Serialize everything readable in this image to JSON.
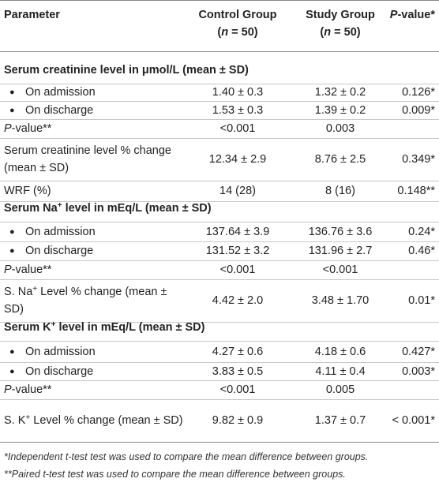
{
  "table": {
    "header": [
      [
        [
          "Parameter"
        ]
      ],
      [
        [
          "Control Group"
        ],
        [
          "(",
          {
            "text": "n",
            "style": "italic"
          },
          " = 50)"
        ]
      ],
      [
        [
          "Study Group"
        ],
        [
          "(",
          {
            "text": "n",
            "style": "italic"
          },
          " = 50)"
        ]
      ],
      [
        [
          {
            "text": "P",
            "style": "italic"
          },
          "-value*"
        ]
      ]
    ],
    "rows": [
      {
        "kind": "section",
        "cells": [
          [
            "Serum creatinine level in μmol/L (mean ± SD)"
          ]
        ]
      },
      {
        "kind": "bullet",
        "cells": [
          [
            "On admission"
          ],
          "1.40 ± 0.3",
          "1.32 ± 0.2",
          "0.126*"
        ]
      },
      {
        "kind": "bullet",
        "cells": [
          [
            "On discharge"
          ],
          "1.53 ± 0.3",
          "1.39 ± 0.2",
          "0.009*"
        ]
      },
      {
        "kind": "plain",
        "cells": [
          [
            {
              "text": "P",
              "style": "italic"
            },
            "-value**"
          ],
          "<0.001",
          "0.003",
          ""
        ]
      },
      {
        "kind": "plain",
        "cells": [
          [
            "Serum creatinine level % change (mean ± SD)"
          ],
          "12.34 ± 2.9",
          "8.76 ± 2.5",
          "0.349*"
        ]
      },
      {
        "kind": "plain",
        "cells": [
          [
            "WRF (%)"
          ],
          "14 (28)",
          "8 (16)",
          "0.148**"
        ]
      },
      {
        "kind": "section",
        "cells": [
          [
            "Serum Na",
            {
              "text": "+",
              "style": "sup"
            },
            " level in mEq/L (mean ± SD)"
          ]
        ]
      },
      {
        "kind": "bullet",
        "cells": [
          [
            "On admission"
          ],
          "137.64 ± 3.9",
          "136.76 ± 3.6",
          "0.24*"
        ]
      },
      {
        "kind": "bullet",
        "cells": [
          [
            "On discharge"
          ],
          "131.52 ± 3.2",
          "131.96 ± 2.7",
          "0.46*"
        ]
      },
      {
        "kind": "plain",
        "cells": [
          [
            {
              "text": "P",
              "style": "italic"
            },
            "-value**"
          ],
          "<0.001",
          "<0.001",
          ""
        ]
      },
      {
        "kind": "plain",
        "cells": [
          [
            "S. Na",
            {
              "text": "+",
              "style": "sup"
            },
            " Level % change (mean ± SD)"
          ],
          "4.42 ± 2.0",
          "3.48 ± 1.70",
          "0.01*"
        ]
      },
      {
        "kind": "section",
        "cells": [
          [
            "Serum K",
            {
              "text": "+",
              "style": "sup"
            },
            " level in mEq/L (mean ± SD)"
          ]
        ]
      },
      {
        "kind": "bullet",
        "cells": [
          [
            "On admission"
          ],
          "4.27 ± 0.6",
          "4.18 ± 0.6",
          "0.427*"
        ]
      },
      {
        "kind": "bullet",
        "cells": [
          [
            "On discharge"
          ],
          "3.83 ± 0.5",
          "4.11 ± 0.4",
          "0.003*"
        ]
      },
      {
        "kind": "plain",
        "cells": [
          [
            {
              "text": "P",
              "style": "italic"
            },
            "-value**"
          ],
          "<0.001",
          "0.005",
          ""
        ]
      },
      {
        "kind": "plain",
        "cells": [
          [
            "S. K",
            {
              "text": "+",
              "style": "sup"
            },
            " Level % change (mean ± SD)"
          ],
          "9.82 ± 0.9",
          "1.37 ± 0.7",
          "< 0.001*"
        ]
      }
    ],
    "footnotes": [
      "*Independent t-test test was used to compare the mean difference between groups.",
      "**Paired t-test test was used to compare the mean difference between groups."
    ]
  }
}
